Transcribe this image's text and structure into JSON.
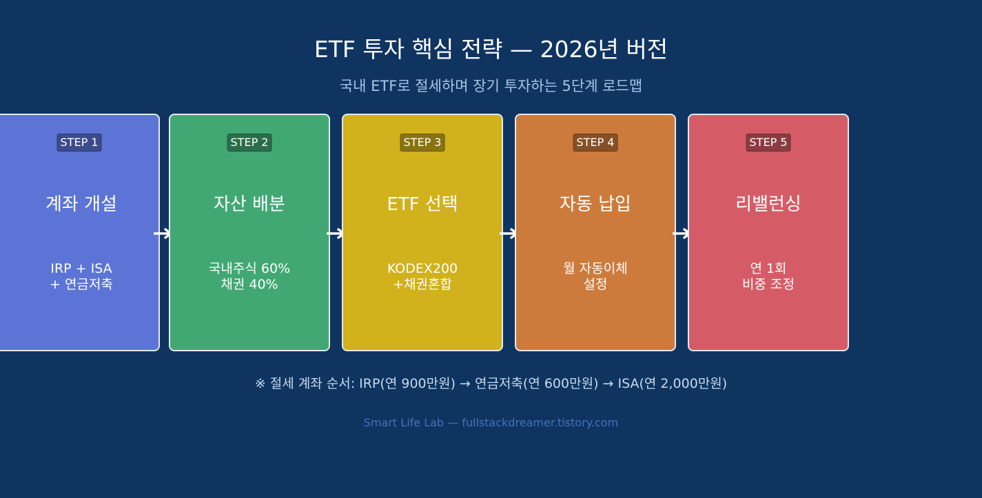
{
  "header": {
    "title": "ETF 투자 핵심 전략 — 2026년 버전",
    "subtitle": "국내 ETF로 절세하며 장기 투자하는 5단계 로드맵"
  },
  "steps": [
    {
      "badge": "STEP 1",
      "title": "계좌 개설",
      "desc_lines": [
        "IRP + ISA",
        "+ 연금저축"
      ],
      "color": "#5b74d6"
    },
    {
      "badge": "STEP 2",
      "title": "자산 배분",
      "desc_lines": [
        "국내주식 60%",
        "채권 40%"
      ],
      "color": "#41a874"
    },
    {
      "badge": "STEP 3",
      "title": "ETF 선택",
      "desc_lines": [
        "KODEX200",
        "+채권혼합"
      ],
      "color": "#d1b11c"
    },
    {
      "badge": "STEP 4",
      "title": "자동 납입",
      "desc_lines": [
        "월 자동이체",
        "설정"
      ],
      "color": "#cd7b3c"
    },
    {
      "badge": "STEP 5",
      "title": "리밸런싱",
      "desc_lines": [
        "연 1회",
        "비중 조정"
      ],
      "color": "#d55c66"
    }
  ],
  "arrow_icon": "arrow-right-icon",
  "footnote": "※ 절세 계좌 순서: IRP(연 900만원) → 연금저축(연 600만원) → ISA(연 2,000만원)",
  "credit": "Smart Life Lab — fullstackdreamer.tistory.com"
}
